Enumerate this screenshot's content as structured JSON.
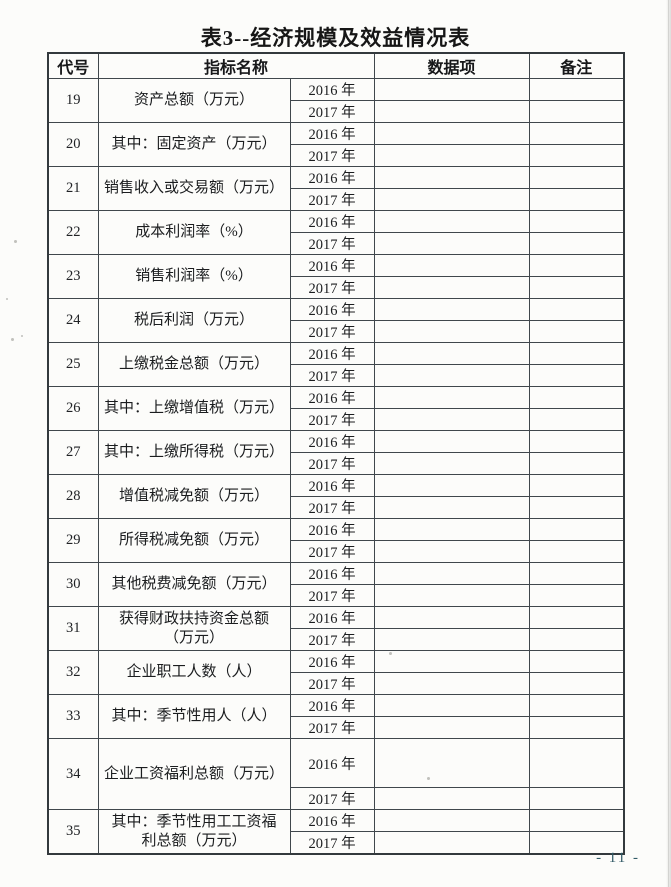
{
  "title": "表3--经济规模及效益情况表",
  "page_number": "- 11 -",
  "table": {
    "headers": {
      "code": "代号",
      "indicator": "指标名称",
      "data": "数据项",
      "remark": "备注"
    },
    "years": [
      "2016 年",
      "2017 年"
    ],
    "rows": [
      {
        "code": "19",
        "name": "资产总额（万元）",
        "values": [
          "",
          ""
        ],
        "remarks": [
          "",
          ""
        ]
      },
      {
        "code": "20",
        "name": "其中：固定资产（万元）",
        "values": [
          "",
          ""
        ],
        "remarks": [
          "",
          ""
        ]
      },
      {
        "code": "21",
        "name": "销售收入或交易额（万元）",
        "values": [
          "",
          ""
        ],
        "remarks": [
          "",
          ""
        ]
      },
      {
        "code": "22",
        "name": "成本利润率（%）",
        "values": [
          "",
          ""
        ],
        "remarks": [
          "",
          ""
        ]
      },
      {
        "code": "23",
        "name": "销售利润率（%）",
        "values": [
          "",
          ""
        ],
        "remarks": [
          "",
          ""
        ]
      },
      {
        "code": "24",
        "name": "税后利润（万元）",
        "values": [
          "",
          ""
        ],
        "remarks": [
          "",
          ""
        ]
      },
      {
        "code": "25",
        "name": "上缴税金总额（万元）",
        "values": [
          "",
          ""
        ],
        "remarks": [
          "",
          ""
        ]
      },
      {
        "code": "26",
        "name": "其中：上缴增值税（万元）",
        "values": [
          "",
          ""
        ],
        "remarks": [
          "",
          ""
        ]
      },
      {
        "code": "27",
        "name": "其中：上缴所得税（万元）",
        "values": [
          "",
          ""
        ],
        "remarks": [
          "",
          ""
        ]
      },
      {
        "code": "28",
        "name": "增值税减免额（万元）",
        "values": [
          "",
          ""
        ],
        "remarks": [
          "",
          ""
        ]
      },
      {
        "code": "29",
        "name": "所得税减免额（万元）",
        "values": [
          "",
          ""
        ],
        "remarks": [
          "",
          ""
        ]
      },
      {
        "code": "30",
        "name": "其他税费减免额（万元）",
        "values": [
          "",
          ""
        ],
        "remarks": [
          "",
          ""
        ]
      },
      {
        "code": "31",
        "name": "获得财政扶持资金总额\n（万元）",
        "values": [
          "",
          ""
        ],
        "remarks": [
          "",
          ""
        ]
      },
      {
        "code": "32",
        "name": "企业职工人数（人）",
        "values": [
          "",
          ""
        ],
        "remarks": [
          "",
          ""
        ]
      },
      {
        "code": "33",
        "name": "其中：季节性用人（人）",
        "values": [
          "",
          ""
        ],
        "remarks": [
          "",
          ""
        ]
      },
      {
        "code": "34",
        "name": "企业工资福利总额（万元）",
        "tall": true,
        "values": [
          "",
          ""
        ],
        "remarks": [
          "",
          ""
        ]
      },
      {
        "code": "35",
        "name": "其中：季节性用工工资福\n利总额（万元）",
        "values": [
          "",
          ""
        ],
        "remarks": [
          "",
          ""
        ]
      }
    ]
  }
}
